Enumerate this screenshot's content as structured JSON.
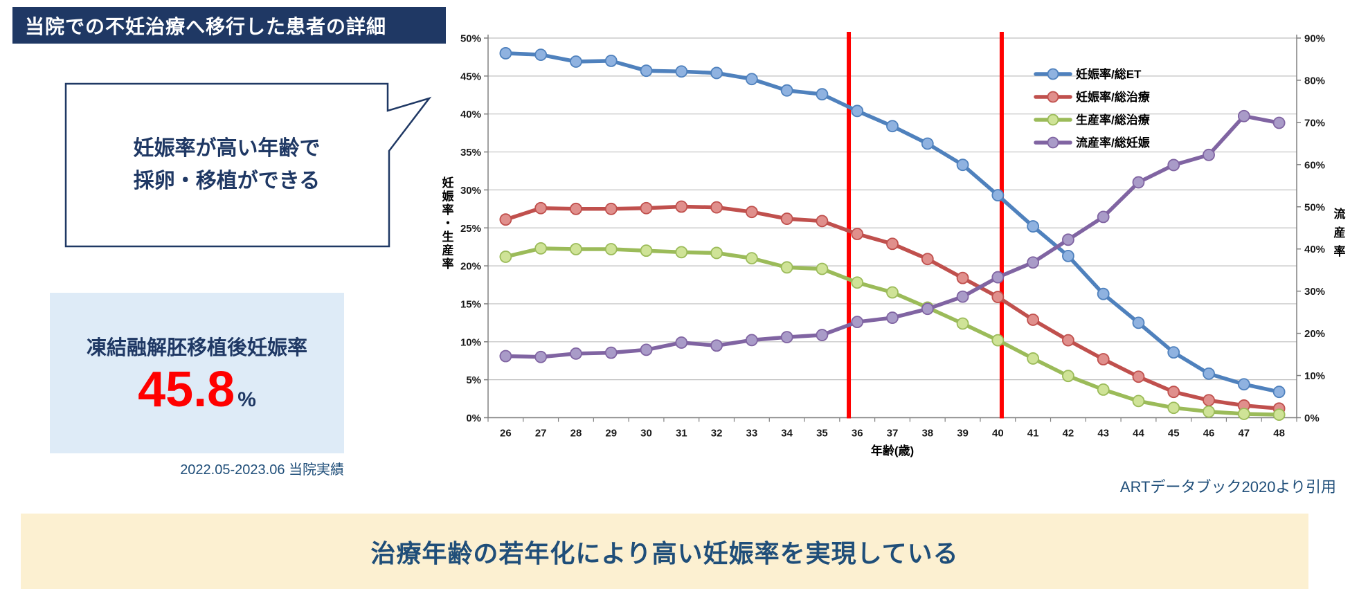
{
  "header": {
    "title": "当院での不妊治療へ移行した患者の詳細"
  },
  "callout": {
    "line1": "妊娠率が高い年齢で",
    "line2": "採卵・移植ができる"
  },
  "stat_box": {
    "label": "凍結融解胚移植後妊娠率",
    "value": "45.8",
    "unit": "%",
    "note": "2022.05-2023.06 当院実績"
  },
  "citation": "ARTデータブック2020より引用",
  "banner": {
    "text": "治療年齢の若年化により高い妊娠率を実現している"
  },
  "colors": {
    "navy": "#1F3864",
    "stat_value_red": "#FF0000",
    "stat_box_bg": "#DEEBF7",
    "banner_bg": "#FCF0D1",
    "vline_red": "#FF0000",
    "gridline": "#BFBFBF",
    "axis_line": "#808080"
  },
  "chart_data": {
    "type": "line",
    "x": [
      26,
      27,
      28,
      29,
      30,
      31,
      32,
      33,
      34,
      35,
      36,
      37,
      38,
      39,
      40,
      41,
      42,
      43,
      44,
      45,
      46,
      47,
      48
    ],
    "xlabel": "年齢(歳)",
    "ylabel_left": "妊娠率・生産率",
    "ylabel_right": "流産率",
    "ylim_left": [
      0,
      50
    ],
    "ytick_step_left": 5,
    "ylim_right": [
      0,
      90
    ],
    "ytick_step_right": 10,
    "grid": true,
    "legend_position": "top-right-inside",
    "vlines": [
      {
        "x": 35.76,
        "color": "#FF0000"
      },
      {
        "x": 40.11,
        "color": "#FF0000"
      }
    ],
    "series": [
      {
        "name": "妊娠率/総ET",
        "axis": "left",
        "color": "#4F81BD",
        "marker_fill": "#8FB2E0",
        "values": [
          48.0,
          47.8,
          46.9,
          47.0,
          45.7,
          45.6,
          45.4,
          44.6,
          43.1,
          42.6,
          40.4,
          38.4,
          36.1,
          33.3,
          29.3,
          25.2,
          21.3,
          16.3,
          12.5,
          8.6,
          5.8,
          4.4,
          3.4
        ]
      },
      {
        "name": "妊娠率/総治療",
        "axis": "left",
        "color": "#C0504D",
        "marker_fill": "#E08F8C",
        "values": [
          26.1,
          27.6,
          27.5,
          27.5,
          27.6,
          27.8,
          27.7,
          27.1,
          26.2,
          25.9,
          24.2,
          22.9,
          20.9,
          18.4,
          15.9,
          12.9,
          10.2,
          7.7,
          5.4,
          3.4,
          2.3,
          1.6,
          1.2
        ]
      },
      {
        "name": "生産率/総治療",
        "axis": "left",
        "color": "#9BBB59",
        "marker_fill": "#CFE397",
        "values": [
          21.2,
          22.3,
          22.2,
          22.2,
          22.0,
          21.8,
          21.7,
          21.0,
          19.8,
          19.6,
          17.8,
          16.5,
          14.5,
          12.4,
          10.2,
          7.8,
          5.5,
          3.7,
          2.2,
          1.3,
          0.8,
          0.5,
          0.4
        ]
      },
      {
        "name": "流産率/総妊娠",
        "axis": "right",
        "color": "#8064A2",
        "marker_fill": "#A99BC8",
        "values": [
          14.6,
          14.4,
          15.2,
          15.4,
          16.1,
          17.8,
          17.1,
          18.4,
          19.1,
          19.6,
          22.7,
          23.7,
          25.8,
          28.7,
          33.3,
          36.8,
          42.2,
          47.6,
          55.8,
          59.9,
          62.3,
          71.5,
          69.9
        ]
      }
    ]
  }
}
